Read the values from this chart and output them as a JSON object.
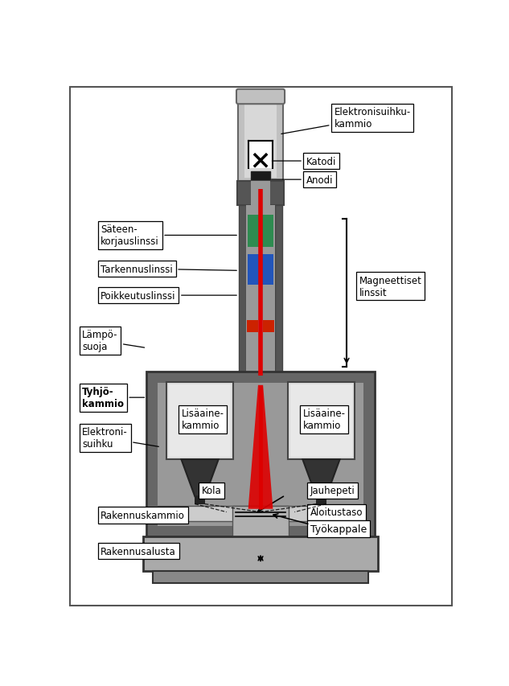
{
  "bg_color": "#ffffff",
  "colors": {
    "cylinder_gray": "#c0c0c0",
    "cylinder_dark": "#888888",
    "cylinder_light": "#d8d8d8",
    "black_box": "#1a1a1a",
    "green_lens": "#2e8b50",
    "blue_lens": "#2255bb",
    "red_beam": "#dd0000",
    "red_small": "#cc2200",
    "col_wall": "#666666",
    "col_bg": "#aaaaaa",
    "chamber_outer": "#777777",
    "chamber_inner": "#999999",
    "chamber_bg": "#bbbbbb",
    "hopper_body": "#cccccc",
    "hopper_top": "#e0e0e0",
    "funnel_dark": "#2a2a2a",
    "build_floor": "#aaaaaa",
    "platform_light": "#e0e0e0",
    "rakennusalusta_color": "#b0b0b0",
    "base_color": "#888888"
  },
  "labels": {
    "elektronisuihku_kammio": "Elektronisuihku-\nkammio",
    "katodi": "Katodi",
    "anodi": "Anodi",
    "sateen_korjauslinssi": "Säteen-\nkorjauslinssi",
    "tarkennuslinssi": "Tarkennuslinssi",
    "poikkeutuslinssi": "Poikkeutuslinssi",
    "magneettiset_linssit": "Magneettiset\nlinssit",
    "lamposuoja": "Lämpö-\nsuoja",
    "tyhjokammio": "Tyhjö-\nkammio",
    "elektronisuihku": "Elektroni-\nsuihku",
    "lisaaine_kammio": "Lisäaine-\nkammio",
    "kola": "Kola",
    "jauhepeti": "Jauhepeti",
    "rakennuskammio": "Rakennuskammio",
    "aloitustaso": "Aloitustaso",
    "rakennusalusta": "Rakennusalusta",
    "tyokappale": "Työkappale"
  }
}
